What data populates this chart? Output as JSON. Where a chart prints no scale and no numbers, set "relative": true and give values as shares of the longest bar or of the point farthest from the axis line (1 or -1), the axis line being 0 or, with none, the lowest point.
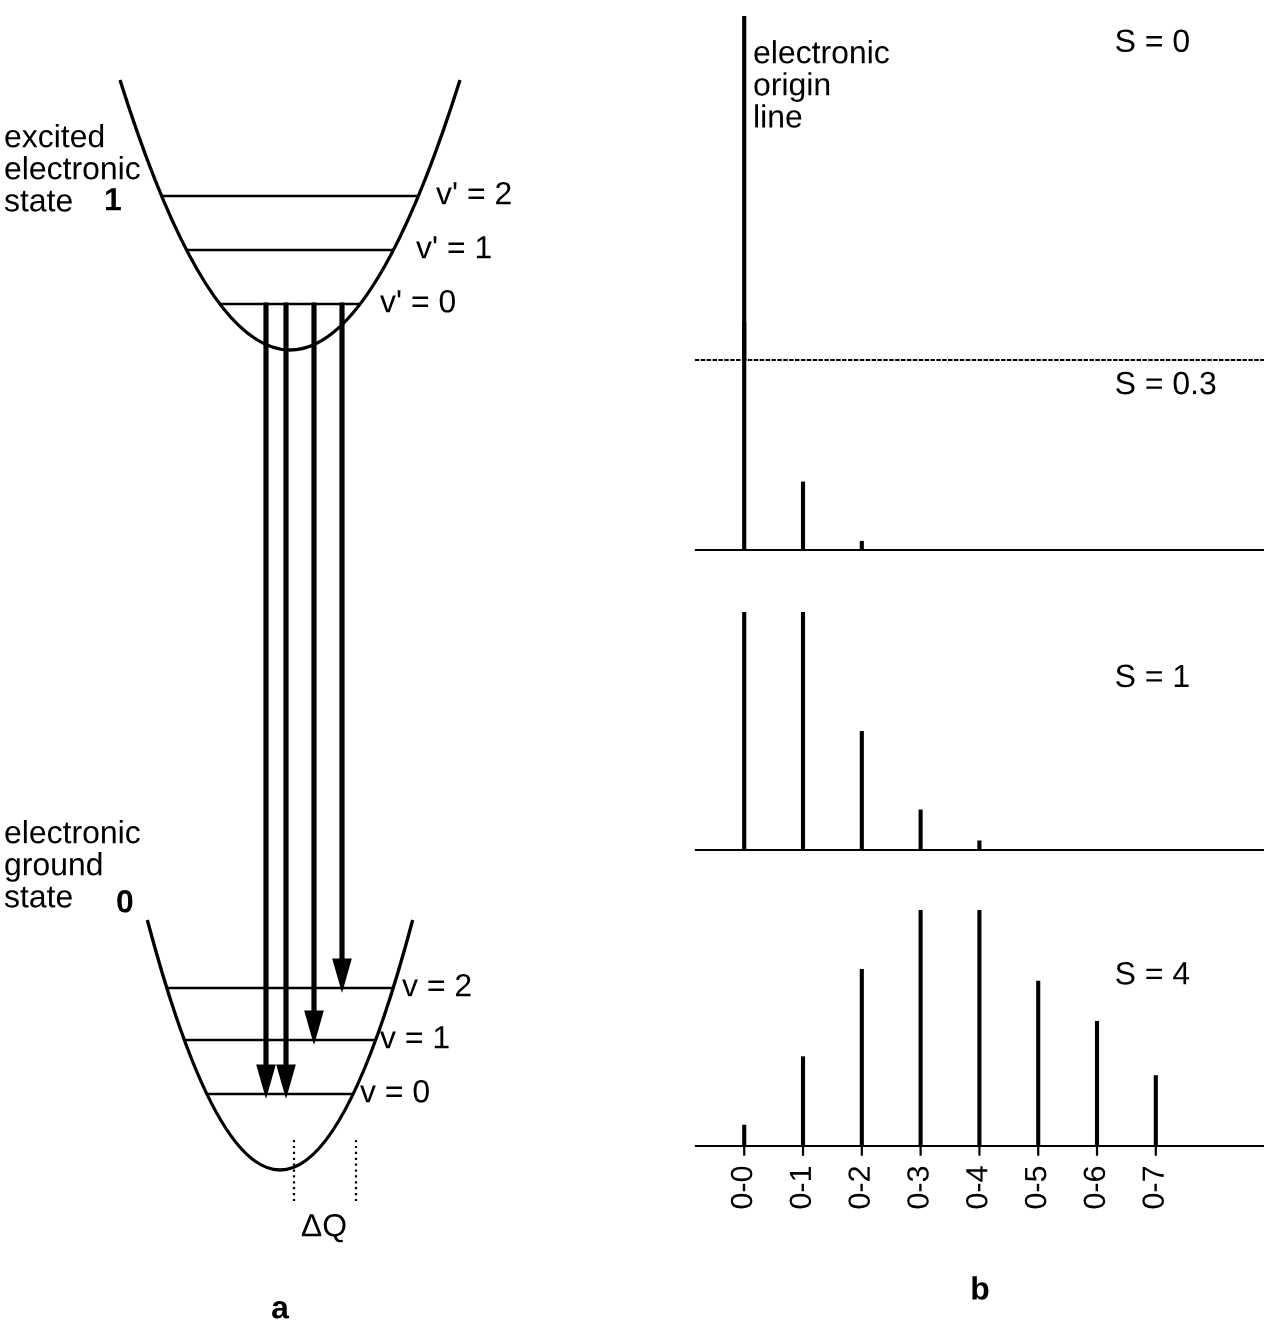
{
  "chart_data": [
    {
      "type": "other",
      "xlabel": "a",
      "annotations": [
        "excited\nelectronic\nstate",
        "1",
        "v' = 2",
        "v' = 1",
        "v' = 0",
        "electronic\nground\nstate",
        "0",
        "v = 2",
        "v = 1",
        "v = 0",
        "ΔQ"
      ]
    },
    {
      "type": "bar",
      "relative": true,
      "tick_labels": false,
      "color": "#000000",
      "categories": [
        null,
        null,
        null,
        null,
        null,
        null,
        null,
        null
      ],
      "values": [
        1,
        null,
        null,
        null,
        null,
        null,
        null,
        null
      ],
      "annotations": [
        "S = 0",
        "electronic\norigin\nline"
      ]
    },
    {
      "type": "bar",
      "relative": true,
      "tick_labels": false,
      "color": "#000000",
      "categories": [
        null,
        null,
        null,
        null,
        null,
        null,
        null,
        null
      ],
      "values": [
        1,
        0.3,
        0.04,
        null,
        null,
        null,
        null,
        null
      ],
      "annotations": [
        "S = 0.3"
      ]
    },
    {
      "type": "bar",
      "relative": true,
      "tick_labels": false,
      "color": "#000000",
      "categories": [
        null,
        null,
        null,
        null,
        null,
        null,
        null,
        null
      ],
      "values": [
        1,
        1,
        0.5,
        0.17,
        0.04,
        null,
        null,
        null
      ],
      "annotations": [
        "S = 1"
      ]
    },
    {
      "type": "bar",
      "relative": true,
      "color": "#000000",
      "categories": [
        "0-0",
        "0-1",
        "0-2",
        "0-3",
        "0-4",
        "0-5",
        "0-6",
        "0-7"
      ],
      "values": [
        0.09,
        0.38,
        0.75,
        1,
        1,
        0.7,
        0.53,
        0.3
      ],
      "annotations": [
        "S = 4"
      ],
      "xlabel": "b"
    }
  ]
}
